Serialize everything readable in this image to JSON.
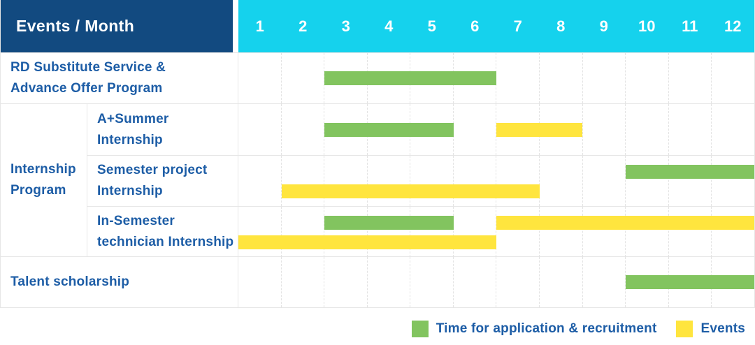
{
  "header": {
    "title": "Events / Month"
  },
  "colors": {
    "header_bg": "#124a80",
    "month_bg": "#15d2ed",
    "green": "#82c45f",
    "yellow": "#ffe53e",
    "text_blue": "#1d5da6"
  },
  "chart_data": {
    "type": "gantt",
    "title": "Events / Month",
    "x_axis_label": "Month",
    "months": [
      "1",
      "2",
      "3",
      "4",
      "5",
      "6",
      "7",
      "8",
      "9",
      "10",
      "11",
      "12"
    ],
    "x_range": [
      1,
      12
    ],
    "grid": true,
    "legend_position": "bottom-right",
    "legend": [
      {
        "label": "Time for application & recruitment",
        "color_key": "green",
        "color": "#82c45f"
      },
      {
        "label": "Events",
        "color_key": "yellow",
        "color": "#ffe53e"
      }
    ],
    "rows": [
      {
        "label": "RD Substitute Service & Advance Offer Program",
        "label_lines": [
          "RD Substitute Service &",
          "Advance Offer Program"
        ],
        "bars": [
          {
            "category": "Time for application & recruitment",
            "color_key": "green",
            "start_month": 3,
            "end_month": 6,
            "track": "mid"
          }
        ]
      },
      {
        "group_label": "Internship Program",
        "group_label_lines": [
          "Internship",
          "Program"
        ],
        "subrows": [
          {
            "label": "A+Summer Internship",
            "label_lines": [
              "A+Summer",
              "Internship"
            ],
            "bars": [
              {
                "category": "Time for application & recruitment",
                "color_key": "green",
                "start_month": 3,
                "end_month": 5,
                "track": "mid"
              },
              {
                "category": "Events",
                "color_key": "yellow",
                "start_month": 7,
                "end_month": 8,
                "track": "mid"
              }
            ]
          },
          {
            "label": "Semester project Internship",
            "label_lines": [
              "Semester project",
              "Internship"
            ],
            "bars": [
              {
                "category": "Time for application & recruitment",
                "color_key": "green",
                "start_month": 10,
                "end_month": 12,
                "track": "top"
              },
              {
                "category": "Events",
                "color_key": "yellow",
                "start_month": 2,
                "end_month": 7,
                "track": "bottom"
              }
            ]
          },
          {
            "label": "In-Semester technician Internship",
            "label_lines": [
              "In-Semester",
              "technician Internship"
            ],
            "bars": [
              {
                "category": "Time for application & recruitment",
                "color_key": "green",
                "start_month": 3,
                "end_month": 5,
                "track": "top"
              },
              {
                "category": "Events",
                "color_key": "yellow",
                "start_month": 7,
                "end_month": 12,
                "track": "top"
              },
              {
                "category": "Events",
                "color_key": "yellow",
                "start_month": 1,
                "end_month": 6,
                "track": "bottom"
              }
            ]
          }
        ]
      },
      {
        "label": "Talent scholarship",
        "label_lines": [
          "Talent scholarship"
        ],
        "bars": [
          {
            "category": "Time for application & recruitment",
            "color_key": "green",
            "start_month": 10,
            "end_month": 12,
            "track": "mid"
          }
        ]
      }
    ]
  }
}
